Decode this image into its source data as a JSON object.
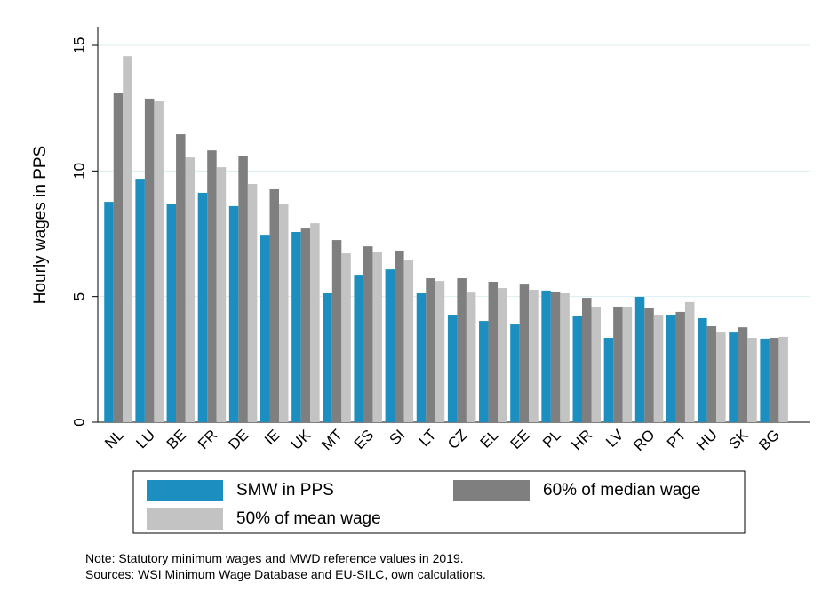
{
  "chart_data": {
    "type": "bar",
    "y_label": "Hourly wages in PPS",
    "categories": [
      "NL",
      "LU",
      "BE",
      "FR",
      "DE",
      "IE",
      "UK",
      "MT",
      "ES",
      "SI",
      "LT",
      "CZ",
      "EL",
      "EE",
      "PL",
      "HR",
      "LV",
      "RO",
      "PT",
      "HU",
      "SK",
      "BG"
    ],
    "series": [
      {
        "name": "SMW in PPS",
        "color": "#1c8fc0",
        "values": [
          8.77,
          9.69,
          8.67,
          9.13,
          8.6,
          7.46,
          7.57,
          5.13,
          5.87,
          6.08,
          5.13,
          4.28,
          4.03,
          3.89,
          5.24,
          4.21,
          3.36,
          4.99,
          4.28,
          4.14,
          3.57,
          3.33
        ]
      },
      {
        "name": "60% of median wage",
        "color": "#7f7f7f",
        "values": [
          13.09,
          12.88,
          11.46,
          10.82,
          10.58,
          9.27,
          7.71,
          7.25,
          7.0,
          6.83,
          5.73,
          5.73,
          5.59,
          5.48,
          5.2,
          4.95,
          4.6,
          4.56,
          4.39,
          3.82,
          3.78,
          3.36
        ]
      },
      {
        "name": "50% of mean wage",
        "color": "#c3c3c3",
        "values": [
          14.57,
          12.77,
          10.54,
          10.15,
          9.48,
          8.67,
          7.92,
          6.72,
          6.79,
          6.44,
          5.62,
          5.16,
          5.34,
          5.27,
          5.13,
          4.6,
          4.6,
          4.28,
          4.78,
          3.57,
          3.36,
          3.4
        ]
      }
    ],
    "ylim": [
      0,
      15
    ],
    "yticks": [
      0,
      5,
      10,
      15
    ],
    "grid": true,
    "notes": [
      "Note: Statutory minimum wages and MWD reference values in 2019.",
      "Sources: WSI Minimum Wage Database and EU-SILC, own calculations."
    ]
  }
}
